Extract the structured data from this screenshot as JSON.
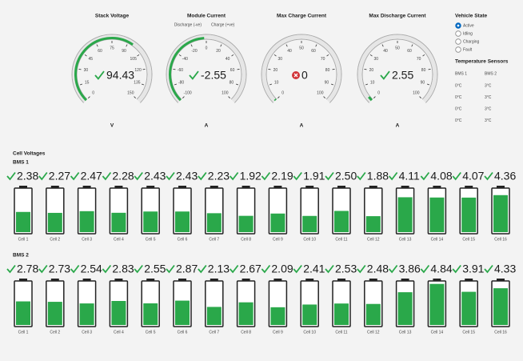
{
  "gauges": [
    {
      "title": "Stack Voltage",
      "value": 94.43,
      "unit": "V",
      "status": "ok",
      "ticks": [
        0,
        15,
        30,
        45,
        60,
        75,
        90,
        105,
        120,
        135,
        150
      ]
    },
    {
      "title": "Module Current",
      "value": -2.55,
      "unit": "A",
      "status": "ok",
      "left_label": "Discharge (-ve)",
      "right_label": "Charge (+ve)",
      "ticks": [
        -100,
        -80,
        -60,
        -40,
        -20,
        0,
        20,
        40,
        60,
        80,
        100
      ]
    },
    {
      "title": "Max Charge Current",
      "value": 0,
      "unit": "A",
      "status": "error",
      "ticks": [
        0,
        10,
        20,
        30,
        40,
        50,
        60,
        70,
        80,
        90,
        100
      ]
    },
    {
      "title": "Max Discharge Current",
      "value": 2.55,
      "unit": "A",
      "status": "ok",
      "ticks": [
        0,
        10,
        20,
        30,
        40,
        50,
        60,
        70,
        80,
        90,
        100
      ]
    }
  ],
  "vehicle_state": {
    "title": "Vehicle State",
    "options": [
      "Active",
      "Idling",
      "Charging",
      "Fault"
    ],
    "selected": 0
  },
  "temperature_sensors": {
    "title": "Temperature Sensors",
    "columns": [
      "BMS 1",
      "BMS 2"
    ],
    "rows": [
      [
        "0°C",
        "3°C"
      ],
      [
        "0°C",
        "3°C"
      ],
      [
        "0°C",
        "3°C"
      ],
      [
        "0°C",
        "3°C"
      ]
    ]
  },
  "cell_voltages": {
    "title": "Cell Voltages",
    "ylim": [
      0,
      5
    ],
    "packs": [
      {
        "name": "BMS 1",
        "values": [
          2.38,
          2.27,
          2.47,
          2.28,
          2.43,
          2.43,
          2.23,
          1.92,
          2.19,
          1.91,
          2.5,
          1.88,
          4.11,
          4.08,
          4.07,
          4.36
        ],
        "value_labels": [
          "2.38",
          "2.27",
          "2.47",
          "2.28",
          "2.43",
          "2.43",
          "2.23",
          "1.92",
          "2.19",
          "1.91",
          "2.50",
          "1.88",
          "4.11",
          "4.08",
          "4.07",
          "4.36"
        ],
        "cells": [
          "Cell 1",
          "Cell 2",
          "Cell 3",
          "Cell 4",
          "Cell 5",
          "Cell 6",
          "Cell 7",
          "Cell 8",
          "Cell 9",
          "Cell 10",
          "Cell 11",
          "Cell 12",
          "Cell 13",
          "Cell 14",
          "Cell 15",
          "Cell 16"
        ]
      },
      {
        "name": "BMS 2",
        "values": [
          2.78,
          2.73,
          2.54,
          2.83,
          2.55,
          2.87,
          2.13,
          2.67,
          2.09,
          2.41,
          2.53,
          2.48,
          3.86,
          4.84,
          3.91,
          4.33
        ],
        "value_labels": [
          "2.78",
          "2.73",
          "2.54",
          "2.83",
          "2.55",
          "2.87",
          "2.13",
          "2.67",
          "2.09",
          "2.41",
          "2.53",
          "2.48",
          "3.86",
          "4.84",
          "3.91",
          "4.33"
        ],
        "cells": [
          "Cell 1",
          "Cell 2",
          "Cell 3",
          "Cell 4",
          "Cell 5",
          "Cell 6",
          "Cell 7",
          "Cell 8",
          "Cell 9",
          "Cell 10",
          "Cell 11",
          "Cell 12",
          "Cell 13",
          "Cell 14",
          "Cell 15",
          "Cell 16"
        ]
      }
    ]
  }
}
